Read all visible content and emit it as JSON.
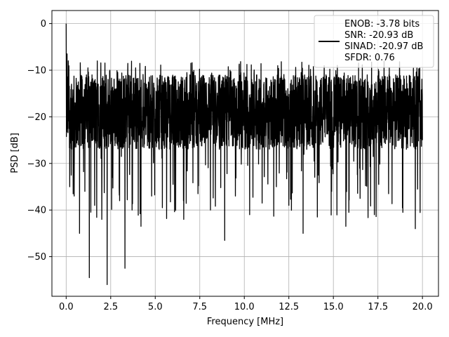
{
  "chart_data": {
    "type": "line",
    "xlabel": "Frequency [MHz]",
    "ylabel": "PSD [dB]",
    "xlim": [
      -0.8,
      20.9
    ],
    "ylim": [
      -58.5,
      2.8
    ],
    "xticks": [
      0.0,
      2.5,
      5.0,
      7.5,
      10.0,
      12.5,
      15.0,
      17.5,
      20.0
    ],
    "xtick_labels": [
      "0.0",
      "2.5",
      "5.0",
      "7.5",
      "10.0",
      "12.5",
      "15.0",
      "17.5",
      "20.0"
    ],
    "yticks": [
      0,
      -10,
      -20,
      -30,
      -40,
      -50
    ],
    "ytick_labels": [
      "0",
      "−10",
      "−20",
      "−30",
      "−40",
      "−50"
    ],
    "grid": true,
    "legend_position": "top-right",
    "series": [
      {
        "color": "#000000",
        "description_points": {
          "x": [
            0.0,
            0.02,
            0.05,
            0.08,
            0.12,
            0.2,
            0.3,
            0.45,
            0.6,
            0.75,
            0.9,
            1.05,
            1.2,
            1.3,
            1.45,
            1.6,
            1.8,
            2.0,
            2.2,
            2.3,
            2.45,
            2.6,
            2.8,
            3.0,
            3.2,
            3.3,
            3.45,
            3.7,
            3.9,
            4.2,
            4.5,
            4.8,
            5.1,
            5.4,
            5.7,
            6.0,
            6.3,
            6.6,
            7.0,
            7.4,
            7.8,
            8.1,
            8.5,
            8.9,
            9.2,
            9.5,
            9.9,
            10.3,
            10.7,
            11.0,
            11.4,
            11.8,
            12.2,
            12.5,
            12.9,
            13.3,
            13.7,
            14.1,
            14.5,
            14.9,
            15.3,
            15.7,
            16.1,
            16.5,
            16.9,
            17.3,
            17.7,
            18.1,
            18.5,
            18.9,
            19.3,
            19.6,
            19.85,
            20.0
          ],
          "y": [
            0.0,
            -14.0,
            -6.5,
            -22.0,
            -8.0,
            -35.0,
            -13.0,
            -37.0,
            -18.0,
            -45.0,
            -12.0,
            -36.0,
            -20.0,
            -54.5,
            -11.0,
            -39.0,
            -13.0,
            -42.0,
            -21.0,
            -56.0,
            -10.0,
            -33.0,
            -14.0,
            -38.0,
            -21.0,
            -52.5,
            -12.0,
            -40.0,
            -9.5,
            -43.5,
            -13.0,
            -37.0,
            -20.0,
            -39.5,
            -11.5,
            -34.5,
            -19.0,
            -42.0,
            -8.5,
            -36.5,
            -13.0,
            -40.0,
            -21.0,
            -46.5,
            -10.0,
            -37.0,
            -16.0,
            -41.0,
            -11.0,
            -38.5,
            -20.0,
            -35.0,
            -12.0,
            -39.0,
            -22.0,
            -45.0,
            -11.5,
            -41.5,
            -17.0,
            -36.0,
            -13.0,
            -43.5,
            -20.0,
            -37.5,
            -11.0,
            -41.0,
            -19.0,
            -36.5,
            -11.0,
            -40.5,
            -13.0,
            -44.0,
            -9.5,
            -25.0
          ]
        }
      }
    ]
  },
  "legend": {
    "lines": [
      "ENOB: -3.78 bits",
      "SNR: -20.93 dB",
      "SINAD: -20.97 dB",
      "SFDR: 0.76"
    ]
  }
}
